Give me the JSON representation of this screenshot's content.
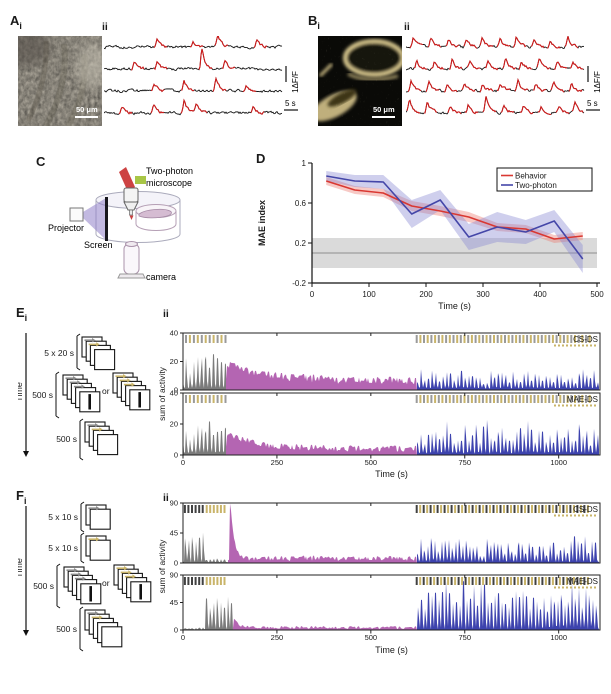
{
  "colors": {
    "gray": "#7b7b7b",
    "purple": "#b465b2",
    "blue": "#3d43ae",
    "olive": "#c9b469",
    "dark": "#414141",
    "stim_gray": "#9a9a9a",
    "trace_red": "#cf1b1b",
    "behavior_red": "#d93832",
    "twophoton_blue": "#4446a8"
  },
  "panels": {
    "A": {
      "label": "A",
      "sub": "i",
      "sub2": "ii",
      "scalebar": "50 μm",
      "df_label": "1ΔF/F",
      "time_label": "5 s",
      "traces": {
        "events": [
          [
            0.3,
            0.5,
            0.64,
            0.86
          ],
          [
            0.17,
            0.3,
            0.55,
            0.68
          ],
          [
            0.28,
            0.45,
            0.63,
            0.8
          ],
          [
            0.1,
            0.28,
            0.45,
            0.52,
            0.84
          ]
        ],
        "amps": [
          [
            8,
            5,
            13,
            7
          ],
          [
            6,
            7,
            20,
            8
          ],
          [
            8,
            11,
            13,
            6
          ],
          [
            7,
            10,
            12,
            9,
            7
          ]
        ]
      }
    },
    "B": {
      "label": "B",
      "sub": "i",
      "sub2": "ii",
      "scalebar": "50 μm",
      "df_label": "1ΔF/F",
      "time_label": "5 s",
      "traces": {
        "events": [
          [
            0.04,
            0.14,
            0.24,
            0.34,
            0.43,
            0.53,
            0.62,
            0.72,
            0.81,
            0.91
          ],
          [
            0.06,
            0.16,
            0.26,
            0.36,
            0.46,
            0.56,
            0.65,
            0.75,
            0.85,
            0.94
          ],
          [
            0.03,
            0.13,
            0.23,
            0.33,
            0.43,
            0.53,
            0.63,
            0.73,
            0.83,
            0.93
          ],
          [
            0.02,
            0.12,
            0.25,
            0.35,
            0.45,
            0.55,
            0.66,
            0.76,
            0.86,
            0.95
          ]
        ],
        "amps": [
          [
            9,
            10,
            7,
            8,
            9,
            7,
            10,
            8,
            7,
            11
          ],
          [
            8,
            7,
            9,
            7,
            8,
            9,
            7,
            10,
            8,
            7
          ],
          [
            10,
            8,
            7,
            9,
            7,
            8,
            10,
            7,
            9,
            8
          ],
          [
            14,
            12,
            7,
            8,
            16,
            7,
            9,
            8,
            7,
            9
          ]
        ]
      }
    },
    "C": {
      "label": "C",
      "microscope_line1": "Two-photon",
      "microscope_line2": "microscope",
      "projector": "Projector",
      "screen": "Screen",
      "camera": "camera"
    },
    "D": {
      "label": "D"
    },
    "E": {
      "label": "E",
      "sub": "i",
      "sub2": "ii",
      "time_axis_label": "Time",
      "or_label": "or",
      "groups": [
        {
          "label": "5 x 20 s"
        },
        {
          "label": "500 s"
        },
        {
          "label": "500 s"
        }
      ]
    },
    "F": {
      "label": "F",
      "sub": "i",
      "sub2": "ii",
      "time_axis_label": "Time",
      "or_label": "or",
      "groups": [
        {
          "label": "5 x 10 s"
        },
        {
          "label": "5 x 10 s"
        },
        {
          "label": "500 s"
        },
        {
          "label": "500 s"
        }
      ]
    }
  },
  "chart_data": [
    {
      "id": "D",
      "type": "line",
      "xlabel": "Time (s)",
      "ylabel": "MAE index",
      "xlim": [
        0,
        500
      ],
      "ylim": [
        -0.2,
        1
      ],
      "xticks": [
        0,
        100,
        200,
        300,
        400,
        500
      ],
      "yticks": [
        1,
        0.6,
        0.2,
        -0.2
      ],
      "x": [
        25,
        75,
        125,
        175,
        225,
        275,
        325,
        375,
        425,
        475
      ],
      "series": [
        {
          "name": "Behavior",
          "color": "#d93832",
          "band_color": "rgba(235,120,110,0.40)",
          "values": [
            0.82,
            0.73,
            0.7,
            0.57,
            0.52,
            0.46,
            0.36,
            0.34,
            0.24,
            0.27
          ],
          "band": [
            0.04,
            0.04,
            0.04,
            0.05,
            0.05,
            0.05,
            0.04,
            0.04,
            0.04,
            0.04
          ]
        },
        {
          "name": "Two-photon",
          "color": "#4446a8",
          "band_color": "rgba(135,135,210,0.40)",
          "values": [
            0.87,
            0.82,
            0.81,
            0.49,
            0.63,
            0.26,
            0.36,
            0.31,
            0.42,
            0.04
          ],
          "band": [
            0.05,
            0.06,
            0.07,
            0.14,
            0.1,
            0.13,
            0.15,
            0.12,
            0.11,
            0.14
          ]
        }
      ],
      "ref_band": {
        "from": -0.05,
        "to": 0.25,
        "line": 0.1
      },
      "legend": [
        "Behavior",
        "Two-photon"
      ],
      "legend_position": "top-right"
    },
    {
      "id": "E",
      "type": "bar",
      "xlabel": "Time (s)",
      "ylabel": "sum of activity",
      "xlim": [
        0,
        1110
      ],
      "ylim": [
        0,
        40
      ],
      "xticks": [
        0,
        250,
        500,
        750,
        1000
      ],
      "yticks": [
        0,
        20,
        40
      ],
      "stim": [
        {
          "t": [
            8,
            113
          ],
          "period": 10.5,
          "pattern": [
            "stim_gray",
            "olive"
          ]
        },
        {
          "t": [
            622,
            1086
          ],
          "period": 9.8,
          "pattern": [
            "stim_gray",
            "olive"
          ]
        }
      ],
      "subplots": [
        {
          "label": "CS-DS",
          "phases": [
            {
              "kind": "spikes",
              "t": [
                0,
                115
              ],
              "color": "gray",
              "t0": 9,
              "period": 10.5,
              "peak": 31,
              "min": 13
            },
            {
              "kind": "noise",
              "t": [
                115,
                622
              ],
              "color": "purple",
              "base": 3.5,
              "spread": 6,
              "onset": {
                "t": 118,
                "peak": 12,
                "tau": 110
              }
            },
            {
              "kind": "spikes",
              "t": [
                622,
                1108
              ],
              "color": "blue",
              "t0": 625,
              "period": 9.8,
              "peak": 16,
              "min": 5
            }
          ]
        },
        {
          "label": "MAE-DS",
          "phases": [
            {
              "kind": "spikes",
              "t": [
                0,
                115
              ],
              "color": "gray",
              "t0": 9,
              "period": 10.5,
              "peak": 30,
              "min": 9
            },
            {
              "kind": "noise",
              "t": [
                115,
                622
              ],
              "color": "purple",
              "base": 2.2,
              "spread": 4,
              "onset": {
                "t": 118,
                "peak": 10,
                "tau": 70
              }
            },
            {
              "kind": "spikes",
              "t": [
                622,
                1108
              ],
              "color": "blue",
              "t0": 625,
              "period": 9.8,
              "peak": 23,
              "min": 8
            }
          ]
        }
      ]
    },
    {
      "id": "F",
      "type": "bar",
      "xlabel": "Time (s)",
      "ylabel": "sum of activity",
      "xlim": [
        0,
        1110
      ],
      "ylim": [
        0,
        90
      ],
      "xticks": [
        0,
        250,
        500,
        750,
        1000
      ],
      "yticks": [
        0,
        45,
        90
      ],
      "stim": [
        {
          "t": [
            5,
            57
          ],
          "period": 9.5,
          "pattern": [
            "dark"
          ]
        },
        {
          "t": [
            63,
            115
          ],
          "period": 9.5,
          "pattern": [
            "olive"
          ]
        },
        {
          "t": [
            622,
            1086
          ],
          "period": 9.3,
          "pattern": [
            "dark",
            "olive"
          ]
        }
      ],
      "subplots": [
        {
          "label": "CS-DS",
          "phases": [
            {
              "kind": "spikes",
              "t": [
                0,
                120
              ],
              "color": "gray",
              "t0": 7,
              "period": 9.5,
              "peak": 48,
              "min": 36,
              "active": [
                0,
                60
              ],
              "inactive_peak": 9
            },
            {
              "kind": "noise",
              "t": [
                120,
                622
              ],
              "color": "purple",
              "base": 3,
              "spread": 8,
              "onset": {
                "t": 126,
                "peak": 86,
                "tau": 9
              }
            },
            {
              "kind": "spikes",
              "t": [
                622,
                1108
              ],
              "color": "blue",
              "t0": 625,
              "period": 9.3,
              "peak": 44,
              "min": 12
            }
          ]
        },
        {
          "label": "MAE-DS",
          "phases": [
            {
              "kind": "spikes",
              "t": [
                0,
                132
              ],
              "color": "gray",
              "t0": 7,
              "period": 9.5,
              "peak": 64,
              "min": 42,
              "active": [
                58,
                132
              ],
              "inactive_peak": 6
            },
            {
              "kind": "noise",
              "t": [
                132,
                622
              ],
              "color": "purple",
              "base": 1.8,
              "spread": 4.5,
              "onset": {
                "t": 136,
                "peak": 17,
                "tau": 10
              }
            },
            {
              "kind": "spikes",
              "t": [
                622,
                1108
              ],
              "color": "blue",
              "t0": 627,
              "period": 9.3,
              "peak": 85,
              "min": 38
            }
          ]
        }
      ]
    }
  ]
}
